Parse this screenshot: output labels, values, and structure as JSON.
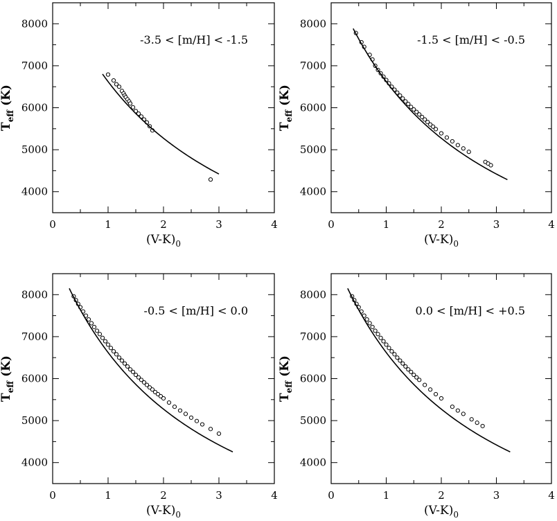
{
  "chart_data": [
    {
      "type": "scatter",
      "annotation": "-3.5 < [m/H] < -1.5",
      "xlabel": {
        "base": "(V-K)",
        "sub": "0"
      },
      "ylabel": {
        "base": "T",
        "sub": "eff",
        "unit": " (K)"
      },
      "xlim": [
        0,
        4
      ],
      "ylim": [
        3500,
        8500
      ],
      "xticks": [
        0,
        1,
        2,
        3,
        4
      ],
      "yticks": [
        4000,
        5000,
        6000,
        7000,
        8000
      ],
      "fit_range": [
        0.9,
        3.0
      ],
      "points": [
        [
          1.0,
          6790
        ],
        [
          1.1,
          6650
        ],
        [
          1.15,
          6560
        ],
        [
          1.2,
          6500
        ],
        [
          1.25,
          6400
        ],
        [
          1.28,
          6340
        ],
        [
          1.3,
          6290
        ],
        [
          1.32,
          6250
        ],
        [
          1.35,
          6200
        ],
        [
          1.38,
          6150
        ],
        [
          1.4,
          6100
        ],
        [
          1.45,
          6010
        ],
        [
          1.5,
          5920
        ],
        [
          1.55,
          5860
        ],
        [
          1.6,
          5790
        ],
        [
          1.65,
          5720
        ],
        [
          1.7,
          5650
        ],
        [
          1.75,
          5560
        ],
        [
          1.8,
          5460
        ],
        [
          2.85,
          4290
        ]
      ]
    },
    {
      "type": "scatter",
      "annotation": "-1.5 < [m/H] < -0.5",
      "xlabel": {
        "base": "(V-K)",
        "sub": "0"
      },
      "ylabel": {
        "base": "T",
        "sub": "eff",
        "unit": " (K)"
      },
      "xlim": [
        0,
        4
      ],
      "ylim": [
        3500,
        8500
      ],
      "xticks": [
        0,
        1,
        2,
        3,
        4
      ],
      "yticks": [
        4000,
        5000,
        6000,
        7000,
        8000
      ],
      "fit_range": [
        0.4,
        3.2
      ],
      "points": [
        [
          0.45,
          7780
        ],
        [
          0.55,
          7560
        ],
        [
          0.6,
          7450
        ],
        [
          0.7,
          7260
        ],
        [
          0.75,
          7150
        ],
        [
          0.8,
          7000
        ],
        [
          0.85,
          6900
        ],
        [
          0.9,
          6820
        ],
        [
          0.95,
          6740
        ],
        [
          1.0,
          6660
        ],
        [
          1.05,
          6580
        ],
        [
          1.1,
          6500
        ],
        [
          1.15,
          6430
        ],
        [
          1.2,
          6360
        ],
        [
          1.25,
          6290
        ],
        [
          1.3,
          6220
        ],
        [
          1.35,
          6150
        ],
        [
          1.4,
          6090
        ],
        [
          1.45,
          6020
        ],
        [
          1.5,
          5960
        ],
        [
          1.55,
          5900
        ],
        [
          1.6,
          5840
        ],
        [
          1.65,
          5780
        ],
        [
          1.7,
          5720
        ],
        [
          1.75,
          5660
        ],
        [
          1.8,
          5600
        ],
        [
          1.85,
          5550
        ],
        [
          1.9,
          5490
        ],
        [
          2.0,
          5390
        ],
        [
          2.1,
          5290
        ],
        [
          2.2,
          5200
        ],
        [
          2.3,
          5110
        ],
        [
          2.4,
          5030
        ],
        [
          2.5,
          4950
        ],
        [
          2.8,
          4710
        ],
        [
          2.85,
          4670
        ],
        [
          2.9,
          4630
        ]
      ]
    },
    {
      "type": "scatter",
      "annotation": "-0.5 < [m/H] < 0.0",
      "xlabel": {
        "base": "(V-K)",
        "sub": "0"
      },
      "ylabel": {
        "base": "T",
        "sub": "eff",
        "unit": " (K)"
      },
      "xlim": [
        0,
        4
      ],
      "ylim": [
        3500,
        8500
      ],
      "xticks": [
        0,
        1,
        2,
        3,
        4
      ],
      "yticks": [
        4000,
        5000,
        6000,
        7000,
        8000
      ],
      "fit_range": [
        0.3,
        3.25
      ],
      "points": [
        [
          0.38,
          7960
        ],
        [
          0.42,
          7870
        ],
        [
          0.46,
          7780
        ],
        [
          0.5,
          7700
        ],
        [
          0.55,
          7600
        ],
        [
          0.6,
          7500
        ],
        [
          0.65,
          7410
        ],
        [
          0.7,
          7320
        ],
        [
          0.75,
          7230
        ],
        [
          0.8,
          7140
        ],
        [
          0.85,
          7060
        ],
        [
          0.9,
          6970
        ],
        [
          0.95,
          6890
        ],
        [
          1.0,
          6810
        ],
        [
          1.05,
          6730
        ],
        [
          1.1,
          6650
        ],
        [
          1.15,
          6580
        ],
        [
          1.2,
          6500
        ],
        [
          1.25,
          6430
        ],
        [
          1.3,
          6360
        ],
        [
          1.35,
          6290
        ],
        [
          1.4,
          6220
        ],
        [
          1.45,
          6160
        ],
        [
          1.5,
          6090
        ],
        [
          1.55,
          6030
        ],
        [
          1.6,
          5970
        ],
        [
          1.65,
          5910
        ],
        [
          1.7,
          5850
        ],
        [
          1.75,
          5790
        ],
        [
          1.8,
          5740
        ],
        [
          1.85,
          5680
        ],
        [
          1.9,
          5630
        ],
        [
          1.95,
          5580
        ],
        [
          2.0,
          5530
        ],
        [
          2.1,
          5430
        ],
        [
          2.2,
          5330
        ],
        [
          2.3,
          5240
        ],
        [
          2.4,
          5160
        ],
        [
          2.5,
          5070
        ],
        [
          2.6,
          4990
        ],
        [
          2.7,
          4910
        ],
        [
          2.85,
          4800
        ],
        [
          3.0,
          4690
        ]
      ]
    },
    {
      "type": "scatter",
      "annotation": "0.0 < [m/H] < +0.5",
      "xlabel": {
        "base": "(V-K)",
        "sub": "0"
      },
      "ylabel": {
        "base": "T",
        "sub": "eff",
        "unit": " (K)"
      },
      "xlim": [
        0,
        4
      ],
      "ylim": [
        3500,
        8500
      ],
      "xticks": [
        0,
        1,
        2,
        3,
        4
      ],
      "yticks": [
        4000,
        5000,
        6000,
        7000,
        8000
      ],
      "fit_range": [
        0.3,
        3.25
      ],
      "points": [
        [
          0.38,
          7960
        ],
        [
          0.42,
          7870
        ],
        [
          0.46,
          7780
        ],
        [
          0.5,
          7700
        ],
        [
          0.55,
          7600
        ],
        [
          0.6,
          7500
        ],
        [
          0.65,
          7410
        ],
        [
          0.7,
          7320
        ],
        [
          0.75,
          7230
        ],
        [
          0.8,
          7140
        ],
        [
          0.85,
          7060
        ],
        [
          0.9,
          6970
        ],
        [
          0.95,
          6890
        ],
        [
          1.0,
          6810
        ],
        [
          1.05,
          6730
        ],
        [
          1.1,
          6650
        ],
        [
          1.15,
          6580
        ],
        [
          1.2,
          6500
        ],
        [
          1.25,
          6430
        ],
        [
          1.3,
          6360
        ],
        [
          1.35,
          6290
        ],
        [
          1.4,
          6220
        ],
        [
          1.45,
          6160
        ],
        [
          1.5,
          6090
        ],
        [
          1.55,
          6030
        ],
        [
          1.6,
          5970
        ],
        [
          1.7,
          5850
        ],
        [
          1.8,
          5740
        ],
        [
          1.9,
          5630
        ],
        [
          2.0,
          5530
        ],
        [
          2.2,
          5330
        ],
        [
          2.3,
          5240
        ],
        [
          2.4,
          5160
        ],
        [
          2.55,
          5030
        ],
        [
          2.65,
          4950
        ],
        [
          2.75,
          4870
        ]
      ]
    }
  ]
}
